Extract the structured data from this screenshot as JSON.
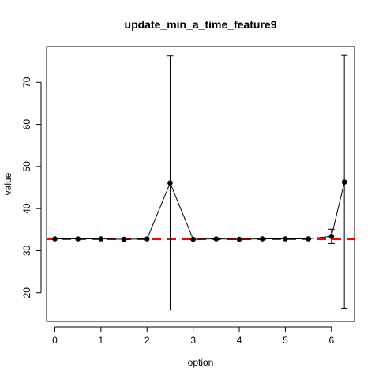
{
  "chart_data": {
    "type": "line",
    "title": "update_min_a_time_feature9",
    "xlabel": "option",
    "ylabel": "value",
    "xlim": [
      -0.18,
      6.5
    ],
    "ylim": [
      13.2,
      78.5
    ],
    "x_ticks": [
      0,
      1,
      2,
      3,
      4,
      5,
      6
    ],
    "y_ticks": [
      20,
      30,
      40,
      50,
      60,
      70
    ],
    "grid": false,
    "series": [
      {
        "color": "#000000",
        "marker": "filled-circle",
        "points": [
          {
            "x": 0.0,
            "y": 32.8
          },
          {
            "x": 0.5,
            "y": 32.8
          },
          {
            "x": 1.0,
            "y": 32.8
          },
          {
            "x": 1.5,
            "y": 32.7
          },
          {
            "x": 2.0,
            "y": 32.8
          },
          {
            "x": 2.5,
            "y": 46.1,
            "err_low": 15.9,
            "err_high": 76.3
          },
          {
            "x": 3.0,
            "y": 32.7
          },
          {
            "x": 3.5,
            "y": 32.8
          },
          {
            "x": 4.0,
            "y": 32.7
          },
          {
            "x": 4.5,
            "y": 32.8
          },
          {
            "x": 5.0,
            "y": 32.8
          },
          {
            "x": 5.5,
            "y": 32.8
          },
          {
            "x": 6.0,
            "y": 33.4,
            "err_low": 31.7,
            "err_high": 35.1
          },
          {
            "x": 6.28,
            "y": 46.3,
            "err_low": 16.3,
            "err_high": 76.4
          }
        ]
      }
    ],
    "reference_line": {
      "y": 32.8,
      "color": "#ff0000",
      "style": "dashed"
    }
  }
}
